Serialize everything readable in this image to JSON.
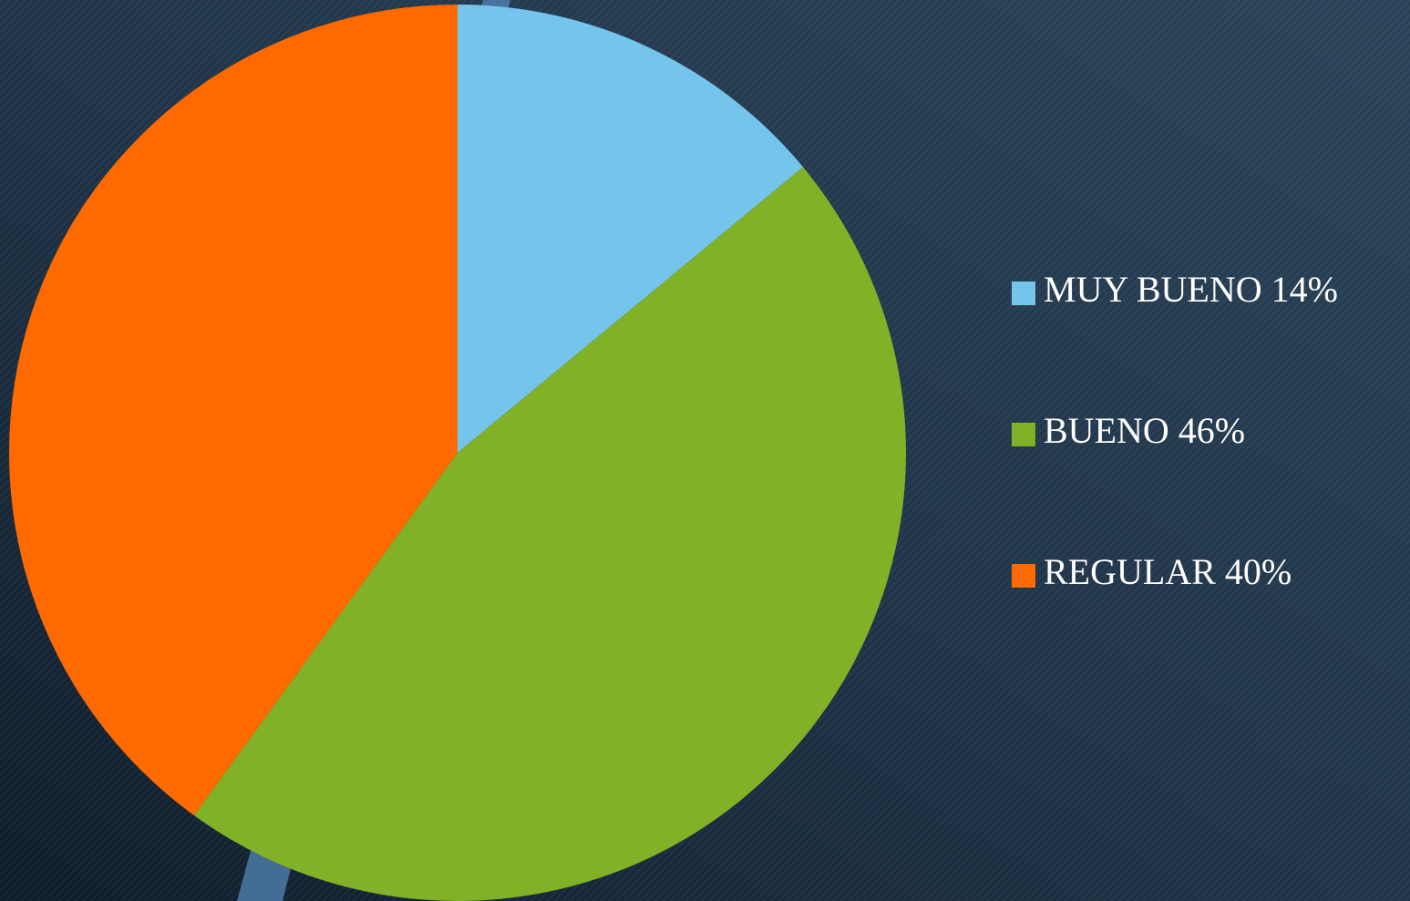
{
  "chart_data": {
    "type": "pie",
    "categories": [
      "MUY BUENO 14%",
      "BUENO 46%",
      "REGULAR 40%"
    ],
    "values": [
      14,
      46,
      40
    ],
    "colors": [
      "#75c4ec",
      "#80b126",
      "#ff6a00"
    ],
    "legend": "right"
  }
}
